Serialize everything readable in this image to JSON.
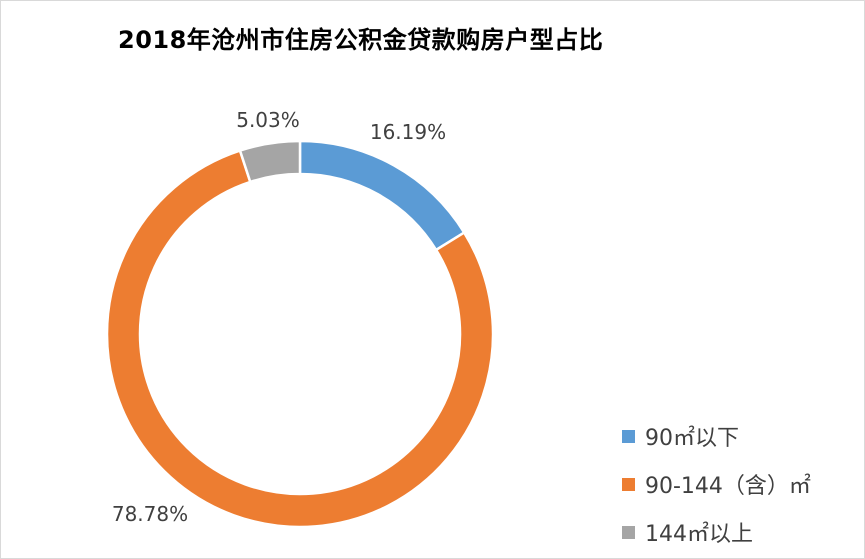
{
  "chart_data": {
    "type": "pie",
    "variant": "donut",
    "title": "2018年沧州市住房公积金贷款购房户型占比",
    "categories": [
      "90㎡以下",
      "90-144（含）㎡",
      "144㎡以上"
    ],
    "values": [
      16.19,
      78.78,
      5.03
    ],
    "data_labels": [
      "16.19%",
      "78.78%",
      "5.03%"
    ],
    "colors": [
      "#5b9bd5",
      "#ed7d31",
      "#a5a5a5"
    ],
    "start_angle_deg": 0,
    "direction": "clockwise",
    "legend_position": "bottom-right"
  }
}
